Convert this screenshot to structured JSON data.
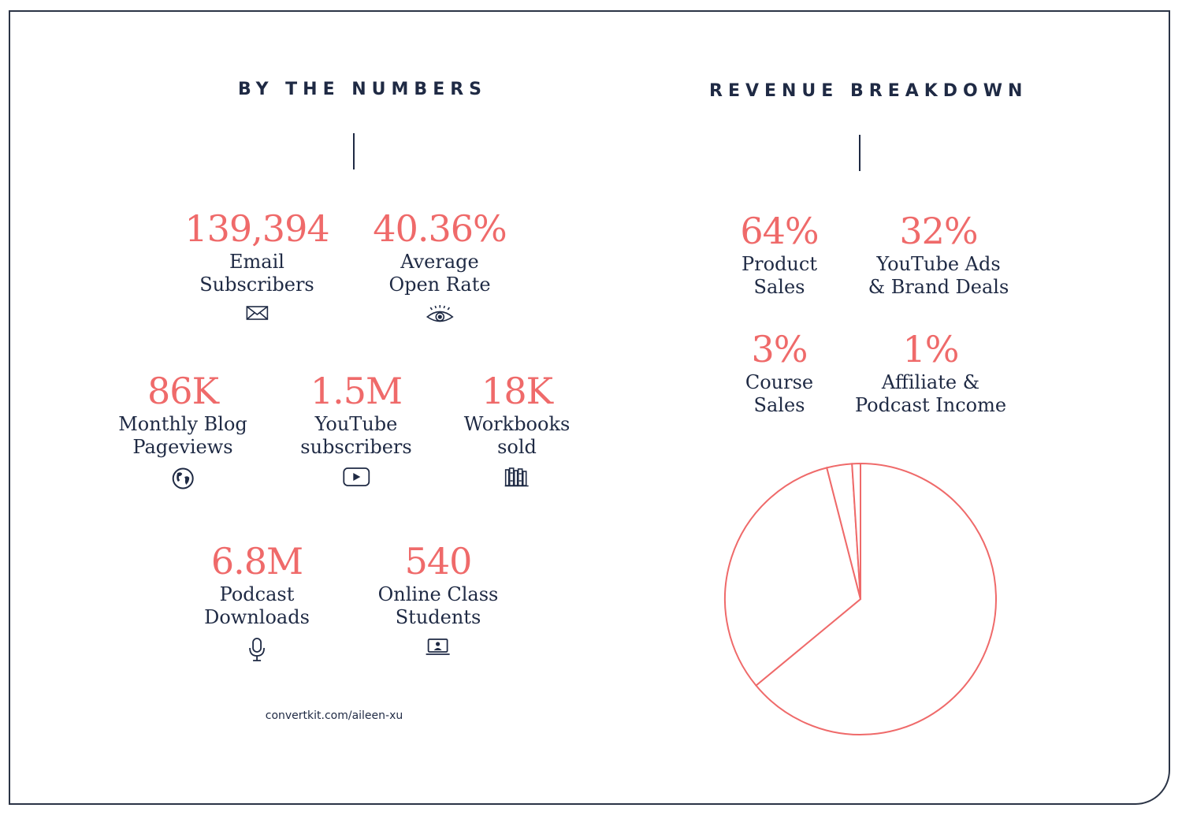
{
  "numbers": {
    "heading": "BY THE NUMBERS",
    "stats": [
      {
        "value": "139,394",
        "line1": "Email",
        "line2": "Subscribers",
        "icon": "envelope-icon"
      },
      {
        "value": "40.36%",
        "line1": "Average",
        "line2": "Open Rate",
        "icon": "eye-icon"
      },
      {
        "value": "86K",
        "line1": "Monthly Blog",
        "line2": "Pageviews",
        "icon": "globe-icon"
      },
      {
        "value": "1.5M",
        "line1": "YouTube",
        "line2": "subscribers",
        "icon": "play-button-icon"
      },
      {
        "value": "18K",
        "line1": "Workbooks",
        "line2": "sold",
        "icon": "books-icon"
      },
      {
        "value": "6.8M",
        "line1": "Podcast",
        "line2": "Downloads",
        "icon": "microphone-icon"
      },
      {
        "value": "540",
        "line1": "Online Class",
        "line2": "Students",
        "icon": "laptop-user-icon"
      }
    ],
    "url": "convertkit.com/aileen-xu"
  },
  "revenue": {
    "heading": "REVENUE BREAKDOWN",
    "items": [
      {
        "value": "64%",
        "line1": "Product",
        "line2": "Sales"
      },
      {
        "value": "32%",
        "line1": "YouTube Ads",
        "line2": "& Brand Deals"
      },
      {
        "value": "3%",
        "line1": "Course",
        "line2": "Sales"
      },
      {
        "value": "1%",
        "line1": "Affiliate &",
        "line2": "Podcast Income"
      }
    ]
  },
  "colors": {
    "accent": "#ef6a6a",
    "text": "#1f2a44"
  },
  "chart_data": {
    "type": "pie",
    "title": "REVENUE BREAKDOWN",
    "categories": [
      "Product Sales",
      "YouTube Ads & Brand Deals",
      "Course Sales",
      "Affiliate & Podcast Income"
    ],
    "values": [
      64,
      32,
      3,
      1
    ]
  }
}
